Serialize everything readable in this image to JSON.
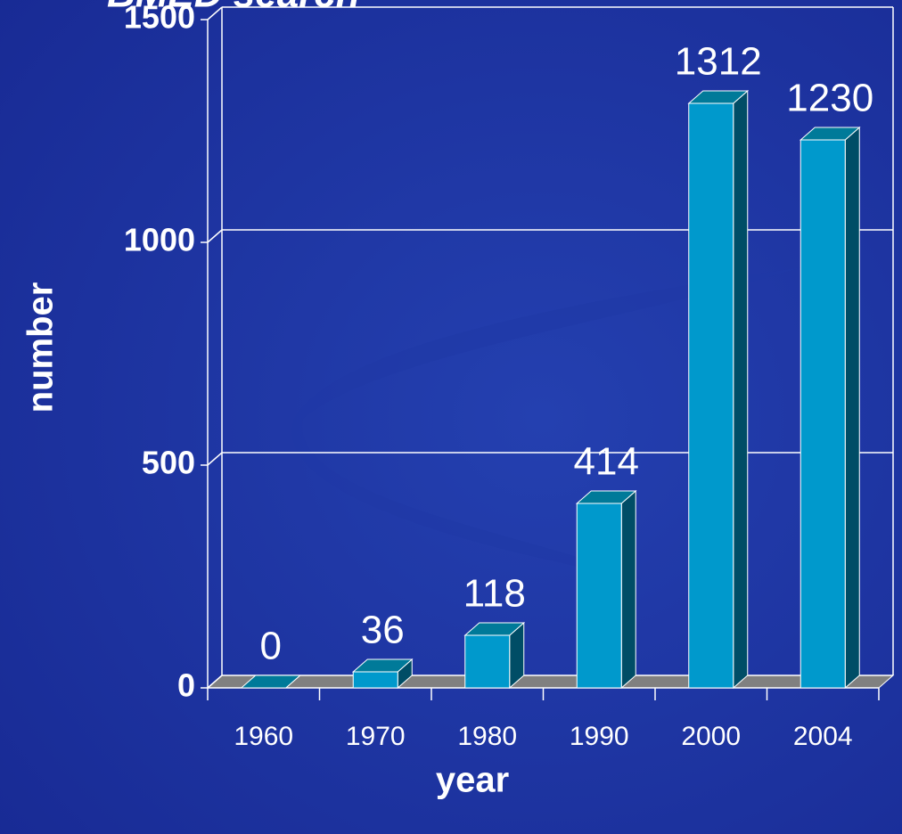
{
  "chart_data": {
    "type": "bar3d",
    "title": "BMED search",
    "x_label": "year",
    "y_label": "number",
    "categories": [
      "1960",
      "1970",
      "1980",
      "1990",
      "2000",
      "2004"
    ],
    "values": [
      0,
      36,
      118,
      414,
      1312,
      1230
    ],
    "color": "#0099cc",
    "ylim": [
      0,
      1500
    ],
    "yticks": [
      0,
      500,
      1000,
      1500
    ],
    "grid": true
  }
}
